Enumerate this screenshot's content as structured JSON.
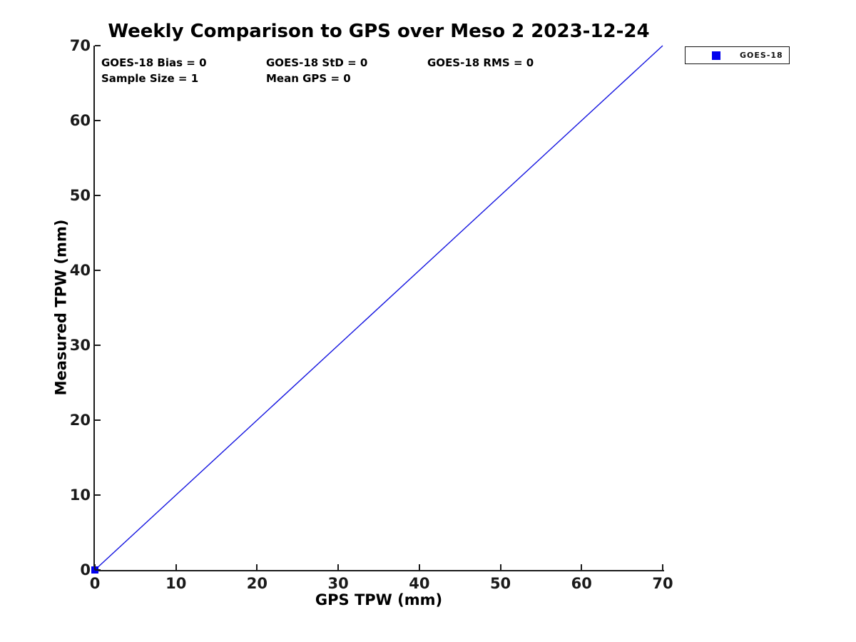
{
  "chart_data": {
    "type": "scatter",
    "title": "Weekly Comparison to GPS over Meso 2 2023-12-24",
    "xlabel": "GPS TPW (mm)",
    "ylabel": "Measured TPW (mm)",
    "xlim": [
      0,
      70
    ],
    "ylim": [
      0,
      70
    ],
    "xticks": [
      0,
      10,
      20,
      30,
      40,
      50,
      60,
      70
    ],
    "yticks": [
      0,
      10,
      20,
      30,
      40,
      50,
      60,
      70
    ],
    "grid": false,
    "box": false,
    "series": [
      {
        "name": "GOES-18",
        "type": "scatter",
        "marker": "square",
        "color": "#0000EE",
        "points": [
          [
            0,
            0
          ]
        ]
      }
    ],
    "line": {
      "name": "identity-line",
      "from": [
        0,
        0
      ],
      "to": [
        70,
        70
      ],
      "color": "#1414E0",
      "width": 1.4
    },
    "legend": {
      "position": "outside-upper-right",
      "entries": [
        "GOES-18"
      ]
    },
    "annotations": [
      "GOES-18 Bias = 0",
      "GOES-18 StD = 0",
      "GOES-18 RMS = 0",
      "Sample Size = 1",
      "Mean GPS = 0"
    ],
    "colors": {
      "axis": "#1A1A1A",
      "text": "#000000",
      "background": "#FFFFFF"
    }
  }
}
